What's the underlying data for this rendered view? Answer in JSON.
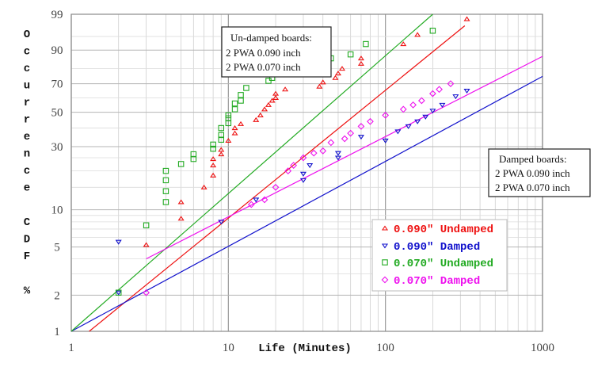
{
  "chart_data": {
    "type": "scatter",
    "x_scale": "log",
    "y_scale": "weibull-probability",
    "xlim": [
      1,
      1000
    ],
    "ylim": [
      1,
      99
    ],
    "grid": true,
    "xlabel": "Life (Minutes)",
    "ylabel": "Occurrence CDF %",
    "x_ticks": [
      "1",
      "10",
      "100",
      "1000"
    ],
    "y_ticks": [
      1,
      2,
      5,
      10,
      30,
      50,
      70,
      90,
      99
    ],
    "annotations": [
      {
        "id": "undamped",
        "lines": [
          "Un-damped boards:",
          "2 PWA  0.090 inch",
          "2 PWA  0.070 inch"
        ]
      },
      {
        "id": "damped",
        "lines": [
          "Damped boards:",
          "2 PWA 0.090 inch",
          "2 PWA 0.070 inch"
        ]
      }
    ],
    "legend_position": "right",
    "series": [
      {
        "name": "0.090\" Undamped",
        "color": "#ee1111",
        "marker": "^",
        "fit_line": [
          [
            1.3,
            1
          ],
          [
            320,
            97.5
          ]
        ],
        "points": [
          [
            3,
            5.2
          ],
          [
            5,
            8.5
          ],
          [
            5,
            11.5
          ],
          [
            7,
            15
          ],
          [
            8,
            18.5
          ],
          [
            8,
            22
          ],
          [
            8,
            24.5
          ],
          [
            9,
            26.5
          ],
          [
            9,
            28.5
          ],
          [
            10,
            33
          ],
          [
            11,
            37
          ],
          [
            11,
            40
          ],
          [
            12,
            42.5
          ],
          [
            15,
            45
          ],
          [
            16,
            48
          ],
          [
            17,
            52
          ],
          [
            18,
            55
          ],
          [
            19,
            58
          ],
          [
            20,
            60
          ],
          [
            20,
            63
          ],
          [
            23,
            66
          ],
          [
            38,
            68
          ],
          [
            40,
            71
          ],
          [
            48,
            74
          ],
          [
            50,
            77
          ],
          [
            53,
            80
          ],
          [
            70,
            83
          ],
          [
            70,
            86
          ],
          [
            130,
            92.5
          ],
          [
            160,
            95.5
          ],
          [
            330,
            98.5
          ]
        ]
      },
      {
        "name": "0.090\" Damped",
        "color": "#1111cc",
        "marker": "v",
        "fit_line": [
          [
            1,
            1
          ],
          [
            1000,
            75
          ]
        ],
        "points": [
          [
            2,
            5.5
          ],
          [
            2,
            2.1
          ],
          [
            9,
            8
          ],
          [
            15,
            12
          ],
          [
            30,
            17
          ],
          [
            30,
            19
          ],
          [
            33,
            22
          ],
          [
            50,
            25
          ],
          [
            50,
            27
          ],
          [
            70,
            35
          ],
          [
            100,
            33
          ],
          [
            120,
            38
          ],
          [
            140,
            41
          ],
          [
            160,
            44
          ],
          [
            180,
            47
          ],
          [
            200,
            51
          ],
          [
            230,
            55
          ],
          [
            280,
            61
          ],
          [
            330,
            65
          ]
        ]
      },
      {
        "name": "0.070\" Undamped",
        "color": "#22aa22",
        "marker": "s",
        "fit_line": [
          [
            1,
            1
          ],
          [
            200,
            99
          ]
        ],
        "points": [
          [
            2,
            2.1
          ],
          [
            3,
            7.5
          ],
          [
            4,
            11.5
          ],
          [
            4,
            14
          ],
          [
            4,
            17
          ],
          [
            4,
            20
          ],
          [
            5,
            22.5
          ],
          [
            6,
            24.5
          ],
          [
            6,
            26.5
          ],
          [
            8,
            29
          ],
          [
            8,
            31
          ],
          [
            9,
            33.5
          ],
          [
            9,
            36
          ],
          [
            9,
            40
          ],
          [
            10,
            43
          ],
          [
            10,
            46
          ],
          [
            10,
            48
          ],
          [
            11,
            52
          ],
          [
            11,
            56
          ],
          [
            12,
            58
          ],
          [
            12,
            62
          ],
          [
            13,
            67
          ],
          [
            18,
            72
          ],
          [
            19,
            74
          ],
          [
            35,
            81
          ],
          [
            45,
            86
          ],
          [
            60,
            88
          ],
          [
            75,
            92.5
          ],
          [
            200,
            96.5
          ]
        ]
      },
      {
        "name": "0.070\" Damped",
        "color": "#ee11ee",
        "marker": "o",
        "fit_line": [
          [
            3,
            4
          ],
          [
            1000,
            87
          ]
        ],
        "points": [
          [
            3,
            2.1
          ],
          [
            14,
            11
          ],
          [
            17,
            12
          ],
          [
            20,
            15
          ],
          [
            24,
            20
          ],
          [
            26,
            22
          ],
          [
            30,
            25
          ],
          [
            35,
            27
          ],
          [
            40,
            28
          ],
          [
            45,
            32
          ],
          [
            55,
            34
          ],
          [
            60,
            37
          ],
          [
            70,
            41
          ],
          [
            80,
            44
          ],
          [
            100,
            48
          ],
          [
            130,
            52
          ],
          [
            150,
            55
          ],
          [
            170,
            58
          ],
          [
            200,
            63
          ],
          [
            220,
            66
          ],
          [
            260,
            70
          ]
        ]
      }
    ]
  }
}
